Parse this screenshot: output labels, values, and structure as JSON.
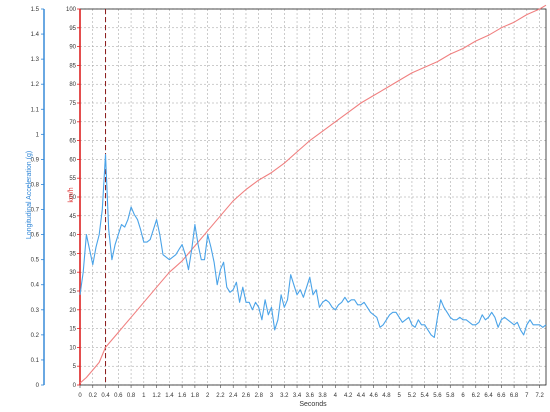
{
  "chart_data": {
    "type": "line",
    "title": "",
    "xlabel": "Seconds",
    "xlim": [
      0,
      7.3
    ],
    "x_ticks": [
      "0",
      "0.2",
      "0.4",
      "0.6",
      "0.8",
      "1",
      "1.2",
      "1.4",
      "1.6",
      "1.8",
      "2",
      "2.2",
      "2.4",
      "2.6",
      "2.8",
      "3",
      "3.2",
      "3.4",
      "3.6",
      "3.8",
      "4",
      "4.2",
      "4.4",
      "4.6",
      "4.8",
      "5",
      "5.2",
      "5.4",
      "5.6",
      "5.8",
      "6",
      "6.2",
      "6.4",
      "6.6",
      "6.8",
      "7",
      "7.2"
    ],
    "y_left": {
      "label": "Longitudinal Acceleration (g)",
      "ylim": [
        0,
        1.5
      ],
      "ticks": [
        "0",
        "0.1",
        "0.2",
        "0.3",
        "0.4",
        "0.5",
        "0.6",
        "0.7",
        "0.8",
        "0.9",
        "1",
        "1.1",
        "1.2",
        "1.3",
        "1.4",
        "1.5"
      ],
      "color": "#2a83d6"
    },
    "y_right": {
      "label": "km/h",
      "ylim": [
        0,
        100
      ],
      "ticks": [
        "0",
        "5",
        "10",
        "15",
        "20",
        "25",
        "30",
        "35",
        "40",
        "45",
        "50",
        "55",
        "60",
        "65",
        "70",
        "75",
        "80",
        "85",
        "90",
        "95",
        "100"
      ],
      "color": "#dd3333"
    },
    "grid": true,
    "marker_line_x": 0.4,
    "series": [
      {
        "axis": "right",
        "color": "#f08080",
        "x": [
          0,
          0.1,
          0.2,
          0.3,
          0.4,
          0.5,
          0.6,
          0.7,
          0.8,
          0.9,
          1.0,
          1.1,
          1.2,
          1.3,
          1.4,
          1.5,
          1.6,
          1.7,
          1.8,
          1.9,
          2.0,
          2.2,
          2.4,
          2.6,
          2.8,
          3.0,
          3.2,
          3.4,
          3.6,
          3.8,
          4.0,
          4.2,
          4.4,
          4.6,
          4.8,
          5.0,
          5.2,
          5.4,
          5.6,
          5.8,
          6.0,
          6.2,
          6.4,
          6.6,
          6.8,
          7.0,
          7.2,
          7.3
        ],
        "values": [
          0.5,
          2,
          4,
          6,
          10,
          12,
          14,
          16,
          18,
          20,
          22,
          24,
          26,
          28,
          30,
          31.5,
          33,
          35,
          37,
          39,
          41,
          45,
          49,
          52,
          54.5,
          56.5,
          59,
          62,
          65,
          67.5,
          70,
          72.5,
          75,
          77,
          79,
          81,
          83,
          84.5,
          86,
          88,
          89.5,
          91.5,
          93,
          95,
          96.5,
          98.5,
          100,
          101
        ]
      },
      {
        "axis": "left",
        "color": "#4aa3e8",
        "x": [
          0,
          0.05,
          0.1,
          0.15,
          0.2,
          0.25,
          0.3,
          0.35,
          0.4,
          0.45,
          0.5,
          0.55,
          0.6,
          0.65,
          0.7,
          0.75,
          0.8,
          0.85,
          0.9,
          0.95,
          1.0,
          1.05,
          1.1,
          1.15,
          1.2,
          1.25,
          1.3,
          1.35,
          1.4,
          1.45,
          1.5,
          1.55,
          1.6,
          1.65,
          1.7,
          1.75,
          1.8,
          1.85,
          1.9,
          1.95,
          2.0,
          2.05,
          2.1,
          2.15,
          2.2,
          2.25,
          2.3,
          2.35,
          2.4,
          2.45,
          2.5,
          2.55,
          2.6,
          2.65,
          2.7,
          2.75,
          2.8,
          2.85,
          2.9,
          2.95,
          3.0,
          3.05,
          3.1,
          3.15,
          3.2,
          3.25,
          3.3,
          3.35,
          3.4,
          3.45,
          3.5,
          3.55,
          3.6,
          3.65,
          3.7,
          3.75,
          3.8,
          3.85,
          3.9,
          3.95,
          4.0,
          4.05,
          4.1,
          4.15,
          4.2,
          4.25,
          4.3,
          4.35,
          4.4,
          4.45,
          4.5,
          4.55,
          4.6,
          4.65,
          4.7,
          4.75,
          4.8,
          4.85,
          4.9,
          4.95,
          5.0,
          5.05,
          5.1,
          5.15,
          5.2,
          5.25,
          5.3,
          5.35,
          5.4,
          5.45,
          5.5,
          5.55,
          5.6,
          5.65,
          5.7,
          5.75,
          5.8,
          5.85,
          5.9,
          5.95,
          6.0,
          6.05,
          6.1,
          6.15,
          6.2,
          6.25,
          6.3,
          6.35,
          6.4,
          6.45,
          6.5,
          6.55,
          6.6,
          6.65,
          6.7,
          6.75,
          6.8,
          6.85,
          6.9,
          6.95,
          7.0,
          7.05,
          7.1,
          7.15,
          7.2,
          7.25,
          7.3
        ],
        "values": [
          0.36,
          0.45,
          0.6,
          0.54,
          0.48,
          0.55,
          0.6,
          0.7,
          0.92,
          0.62,
          0.5,
          0.56,
          0.6,
          0.64,
          0.63,
          0.66,
          0.71,
          0.68,
          0.66,
          0.62,
          0.57,
          0.57,
          0.58,
          0.62,
          0.66,
          0.6,
          0.52,
          0.51,
          0.5,
          0.51,
          0.52,
          0.54,
          0.56,
          0.52,
          0.46,
          0.54,
          0.64,
          0.56,
          0.5,
          0.5,
          0.6,
          0.55,
          0.49,
          0.4,
          0.46,
          0.49,
          0.39,
          0.37,
          0.38,
          0.41,
          0.33,
          0.39,
          0.33,
          0.33,
          0.3,
          0.33,
          0.31,
          0.26,
          0.34,
          0.28,
          0.31,
          0.22,
          0.26,
          0.36,
          0.31,
          0.34,
          0.44,
          0.4,
          0.36,
          0.38,
          0.35,
          0.39,
          0.43,
          0.36,
          0.38,
          0.31,
          0.33,
          0.34,
          0.33,
          0.31,
          0.3,
          0.32,
          0.33,
          0.35,
          0.33,
          0.34,
          0.34,
          0.32,
          0.32,
          0.33,
          0.31,
          0.29,
          0.28,
          0.27,
          0.23,
          0.24,
          0.26,
          0.28,
          0.29,
          0.29,
          0.27,
          0.25,
          0.26,
          0.27,
          0.24,
          0.23,
          0.26,
          0.24,
          0.24,
          0.22,
          0.2,
          0.19,
          0.27,
          0.34,
          0.31,
          0.29,
          0.27,
          0.26,
          0.26,
          0.27,
          0.26,
          0.26,
          0.25,
          0.24,
          0.24,
          0.25,
          0.28,
          0.26,
          0.27,
          0.29,
          0.27,
          0.23,
          0.26,
          0.27,
          0.26,
          0.25,
          0.24,
          0.25,
          0.22,
          0.2,
          0.24,
          0.26,
          0.24,
          0.24,
          0.24,
          0.23,
          0.24
        ]
      }
    ]
  }
}
